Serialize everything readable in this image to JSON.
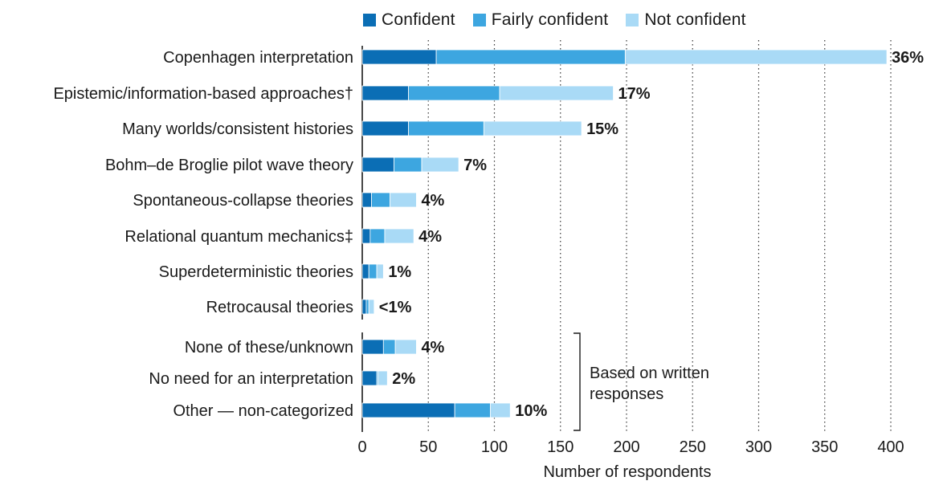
{
  "chart_data": {
    "type": "bar",
    "orientation": "horizontal",
    "stacked": true,
    "categories": [
      "Copenhagen interpretation",
      "Epistemic/information-based approaches†",
      "Many worlds/consistent histories",
      "Bohm–de Broglie pilot wave theory",
      "Spontaneous-collapse theories",
      "Relational quantum mechanics‡",
      "Superdeterministic theories",
      "Retrocausal theories",
      "None of these/unknown",
      "No need for an interpretation",
      "Other — non-categorized"
    ],
    "series": [
      {
        "name": "Confident",
        "color": "#0b6eb5",
        "values": [
          56,
          35,
          35,
          24,
          7,
          6,
          5,
          3,
          16,
          11,
          70
        ]
      },
      {
        "name": "Fairly confident",
        "color": "#3da6e0",
        "values": [
          143,
          69,
          57,
          21,
          14,
          11,
          6,
          2,
          9,
          1,
          27
        ]
      },
      {
        "name": "Not confident",
        "color": "#a9daf6",
        "values": [
          198,
          86,
          74,
          28,
          20,
          22,
          5,
          4,
          16,
          7,
          15
        ]
      }
    ],
    "data_labels": [
      "36%",
      "17%",
      "15%",
      "7%",
      "4%",
      "4%",
      "1%",
      "<1%",
      "4%",
      "2%",
      "10%"
    ],
    "xlabel": "Number of respondents",
    "ylabel": "",
    "xlim": [
      0,
      400
    ],
    "xticks": [
      0,
      50,
      100,
      150,
      200,
      250,
      300,
      350,
      400
    ],
    "grid": "vertical dotted",
    "legend_position": "top",
    "bracket_note": "Based on written responses",
    "bracket_groups": [
      "None of these/unknown",
      "No need for an interpretation",
      "Other — non-categorized"
    ]
  }
}
